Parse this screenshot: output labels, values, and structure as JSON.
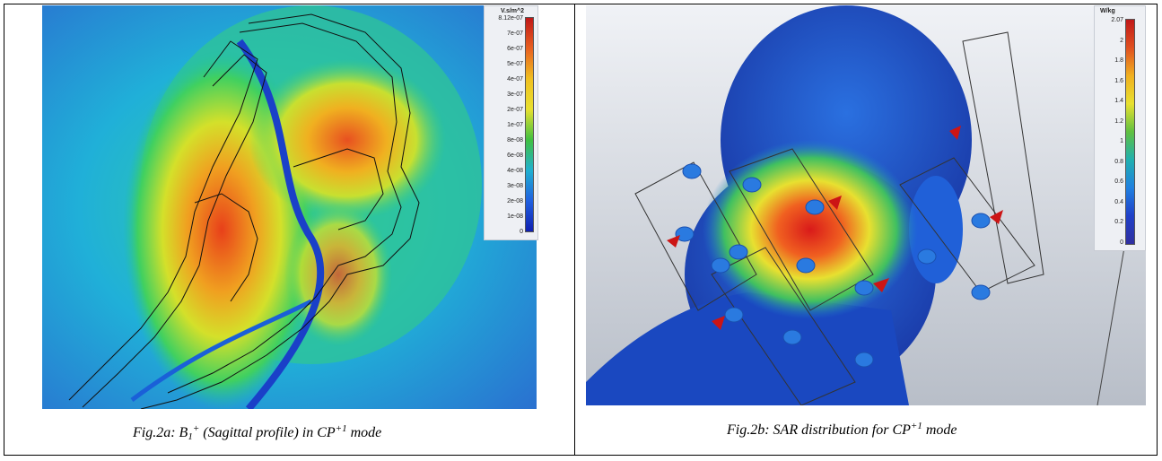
{
  "panel_a": {
    "caption_prefix": "Fig.2a: B",
    "caption_sub": "1",
    "caption_sup1": "+",
    "caption_middle": " (Sagittal profile) in CP",
    "caption_sup2": "+1",
    "caption_suffix": " mode",
    "legend": {
      "unit": "V.s/m^2",
      "ticks": [
        "8.12e-07",
        "7e-07",
        "6e-07",
        "5e-07",
        "4e-07",
        "3e-07",
        "2e-07",
        "1e-07",
        "8e-08",
        "6e-08",
        "4e-08",
        "3e-08",
        "2e-08",
        "1e-08",
        "0"
      ]
    }
  },
  "panel_b": {
    "caption_prefix": "Fig.2b: SAR distribution for CP",
    "caption_sup": "+1",
    "caption_suffix": " mode",
    "legend": {
      "unit": "W/kg",
      "ticks": [
        "2.07",
        "2",
        "1.8",
        "1.6",
        "1.4",
        "1.2",
        "1",
        "0.8",
        "0.6",
        "0.4",
        "0.2",
        "0"
      ]
    }
  },
  "colors": {
    "field_high": "#e8401a",
    "field_mid": "#d4e02a",
    "field_low": "#1aa0e0",
    "field_bg": "#2a7bd8",
    "sar_high": "#d91a1a",
    "sar_low": "#1a4ed0"
  }
}
